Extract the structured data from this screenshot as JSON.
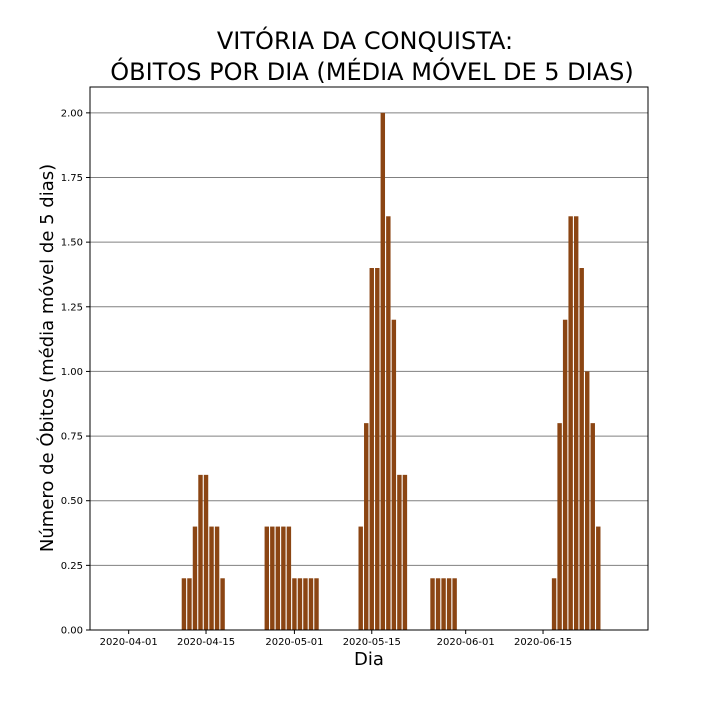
{
  "chart_data": {
    "type": "bar",
    "title_line1": "VITÓRIA DA CONQUISTA:",
    "title_line2": "ÓBITOS POR DIA (MÉDIA MÓVEL DE 5 DIAS)",
    "xlabel": "Dia",
    "ylabel": "Número de Óbitos (média móvel de 5 dias)",
    "ylim": [
      0,
      2.1
    ],
    "xlim": [
      "2020-03-25",
      "2020-07-04"
    ],
    "grid": "horizontal",
    "bar_color": "#8b4513",
    "x_ticks": [
      "2020-04-01",
      "2020-04-15",
      "2020-05-01",
      "2020-05-15",
      "2020-06-01",
      "2020-06-15"
    ],
    "y_ticks": [
      "0.00",
      "0.25",
      "0.50",
      "0.75",
      "1.00",
      "1.25",
      "1.50",
      "1.75",
      "2.00"
    ],
    "x": [
      "2020-04-11",
      "2020-04-12",
      "2020-04-13",
      "2020-04-14",
      "2020-04-15",
      "2020-04-16",
      "2020-04-17",
      "2020-04-18",
      "2020-04-26",
      "2020-04-27",
      "2020-04-28",
      "2020-04-29",
      "2020-04-30",
      "2020-05-01",
      "2020-05-02",
      "2020-05-03",
      "2020-05-04",
      "2020-05-05",
      "2020-05-13",
      "2020-05-14",
      "2020-05-15",
      "2020-05-16",
      "2020-05-17",
      "2020-05-18",
      "2020-05-19",
      "2020-05-20",
      "2020-05-21",
      "2020-05-26",
      "2020-05-27",
      "2020-05-28",
      "2020-05-29",
      "2020-05-30",
      "2020-06-17",
      "2020-06-18",
      "2020-06-19",
      "2020-06-20",
      "2020-06-21",
      "2020-06-22",
      "2020-06-23",
      "2020-06-24",
      "2020-06-25"
    ],
    "values": [
      0.2,
      0.2,
      0.4,
      0.6,
      0.6,
      0.4,
      0.4,
      0.2,
      0.4,
      0.4,
      0.4,
      0.4,
      0.4,
      0.2,
      0.2,
      0.2,
      0.2,
      0.2,
      0.4,
      0.8,
      1.4,
      1.4,
      2.0,
      1.6,
      1.2,
      0.6,
      0.6,
      0.2,
      0.2,
      0.2,
      0.2,
      0.2,
      0.2,
      0.8,
      1.2,
      1.6,
      1.6,
      1.4,
      1.0,
      0.8,
      0.4
    ]
  }
}
